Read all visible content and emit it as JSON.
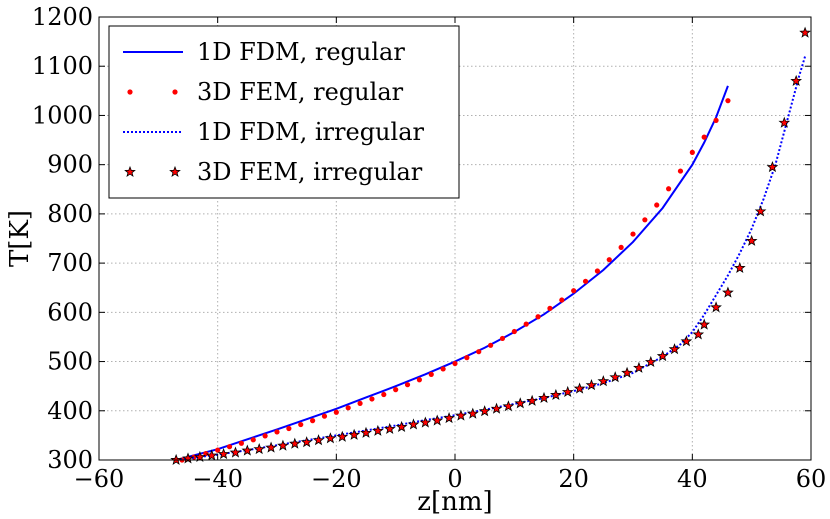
{
  "chart_data": {
    "type": "line",
    "xlabel": "z[nm]",
    "ylabel": "T[K]",
    "xlim": [
      -60,
      60
    ],
    "ylim": [
      300,
      1200
    ],
    "xticks": [
      -60,
      -40,
      -20,
      0,
      20,
      40,
      60
    ],
    "xtick_labels": [
      "−60",
      "−40",
      "−20",
      "0",
      "20",
      "40",
      "60"
    ],
    "yticks": [
      300,
      400,
      500,
      600,
      700,
      800,
      900,
      1000,
      1100,
      1200
    ],
    "ytick_labels": [
      "300",
      "400",
      "500",
      "600",
      "700",
      "800",
      "900",
      "1000",
      "1100",
      "1200"
    ],
    "grid": true,
    "legend_position": "top-left",
    "series": [
      {
        "name": "1D FDM, regular",
        "style": "solid-line",
        "color": "#0000ff",
        "x": [
          -47,
          -40,
          -35,
          -30,
          -25,
          -20,
          -15,
          -10,
          -5,
          0,
          5,
          10,
          15,
          20,
          25,
          30,
          35,
          40,
          42,
          44,
          46
        ],
        "y": [
          300,
          322,
          342,
          362,
          383,
          404,
          427,
          450,
          474,
          500,
          528,
          560,
          596,
          638,
          686,
          743,
          812,
          900,
          945,
          996,
          1060
        ]
      },
      {
        "name": "3D FEM, regular",
        "style": "dots",
        "color": "#ff0000",
        "x": [
          -46,
          -44,
          -42,
          -40,
          -38,
          -36,
          -34,
          -32,
          -30,
          -28,
          -26,
          -24,
          -22,
          -20,
          -18,
          -16,
          -14,
          -12,
          -10,
          -8,
          -6,
          -4,
          -2,
          0,
          2,
          4,
          6,
          8,
          10,
          12,
          14,
          16,
          18,
          20,
          22,
          24,
          26,
          28,
          30,
          32,
          34,
          36,
          38,
          40,
          42,
          44,
          46
        ],
        "y": [
          300,
          306,
          313,
          320,
          327,
          334,
          341,
          349,
          357,
          364,
          372,
          380,
          389,
          397,
          406,
          415,
          424,
          433,
          443,
          453,
          463,
          474,
          485,
          496,
          508,
          520,
          533,
          547,
          561,
          576,
          591,
          608,
          625,
          644,
          663,
          684,
          707,
          732,
          759,
          788,
          818,
          851,
          887,
          925,
          956,
          990,
          1030
        ]
      },
      {
        "name": "1D FDM, irregular",
        "style": "dotted-line",
        "color": "#0000ff",
        "x": [
          -47,
          -40,
          -35,
          -30,
          -25,
          -20,
          -15,
          -10,
          -5,
          0,
          5,
          10,
          15,
          20,
          25,
          30,
          35,
          38,
          40,
          42,
          44,
          46,
          48,
          50,
          52,
          54,
          56,
          58,
          59
        ],
        "y": [
          300,
          311,
          320,
          330,
          340,
          350,
          360,
          370,
          381,
          391,
          402,
          414,
          426,
          440,
          456,
          477,
          510,
          535,
          560,
          595,
          635,
          675,
          720,
          770,
          830,
          900,
          990,
          1080,
          1120
        ]
      },
      {
        "name": "3D FEM, irregular",
        "style": "star-markers",
        "color": "#ff0000",
        "edgecolor": "#000000",
        "x": [
          -47,
          -45,
          -43,
          -41,
          -39,
          -37,
          -35,
          -33,
          -31,
          -29,
          -27,
          -25,
          -23,
          -21,
          -19,
          -17,
          -15,
          -13,
          -11,
          -9,
          -7,
          -5,
          -3,
          -1,
          1,
          3,
          5,
          7,
          9,
          11,
          13,
          15,
          17,
          19,
          21,
          23,
          25,
          27,
          29,
          31,
          33,
          35,
          37,
          39,
          41,
          42,
          44,
          46,
          48,
          50,
          51.5,
          53.5,
          55.5,
          57.5,
          59
        ],
        "y": [
          300,
          303,
          306,
          309,
          312,
          315,
          319,
          322,
          325,
          329,
          333,
          336,
          340,
          344,
          347,
          351,
          355,
          359,
          363,
          367,
          372,
          376,
          380,
          385,
          390,
          394,
          399,
          404,
          409,
          415,
          420,
          426,
          432,
          438,
          445,
          452,
          460,
          468,
          477,
          487,
          499,
          511,
          525,
          541,
          555,
          575,
          610,
          640,
          690,
          745,
          805,
          895,
          985,
          1070,
          1168
        ]
      }
    ]
  }
}
